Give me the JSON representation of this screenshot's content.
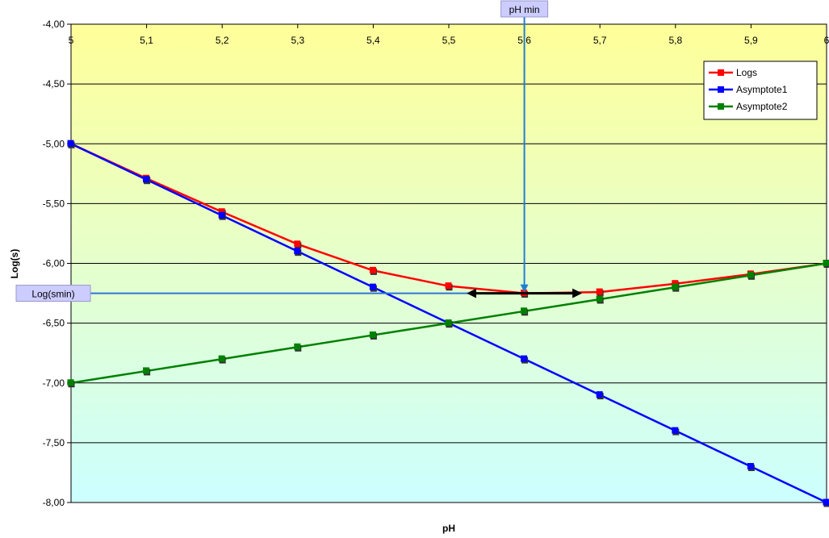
{
  "chart_data": {
    "type": "line",
    "title": "",
    "xlabel": "pH",
    "ylabel": "Log(s)",
    "xlim": [
      5,
      6
    ],
    "ylim": [
      -8,
      -4
    ],
    "x": [
      5,
      5.1,
      5.2,
      5.3,
      5.4,
      5.5,
      5.6,
      5.7,
      5.8,
      5.9,
      6
    ],
    "x_tick_labels": [
      "5",
      "5,1",
      "5,2",
      "5,3",
      "5,4",
      "5,5",
      "5,6",
      "5,7",
      "5,8",
      "5,9",
      "6"
    ],
    "y_ticks": [
      -4,
      -4.5,
      -5,
      -5.5,
      -6,
      -6.5,
      -7,
      -7.5,
      -8
    ],
    "y_tick_labels": [
      "-4,00",
      "-4,50",
      "-5,00",
      "-5,50",
      "-6,00",
      "-6,50",
      "-7,00",
      "-7,50",
      "-8,00"
    ],
    "x_axis_position": "top",
    "grid": "horizontal",
    "background_gradient": [
      "#ffff99",
      "#ccffff"
    ],
    "legend_position": "top-right",
    "series": [
      {
        "name": "Logs",
        "color": "#ff0000",
        "values": [
          -5.0,
          -5.29,
          -5.57,
          -5.84,
          -6.06,
          -6.19,
          -6.25,
          -6.24,
          -6.17,
          -6.09,
          -6.0
        ]
      },
      {
        "name": "Asymptote1",
        "color": "#0000ff",
        "values": [
          -5.0,
          -5.3,
          -5.6,
          -5.9,
          -6.2,
          -6.5,
          -6.8,
          -7.1,
          -7.4,
          -7.7,
          -8.0
        ]
      },
      {
        "name": "Asymptote2",
        "color": "#008000",
        "values": [
          -7.0,
          -6.9,
          -6.8,
          -6.7,
          -6.6,
          -6.5,
          -6.4,
          -6.3,
          -6.2,
          -6.1,
          -6.0
        ]
      }
    ],
    "annotations": {
      "ph_min": {
        "label": "pH min",
        "x": 5.6
      },
      "log_smin": {
        "label": "Log(smin)",
        "y": -6.25
      },
      "double_arrow": {
        "x_from": 5.53,
        "x_to": 5.67,
        "y": -6.25
      }
    }
  }
}
